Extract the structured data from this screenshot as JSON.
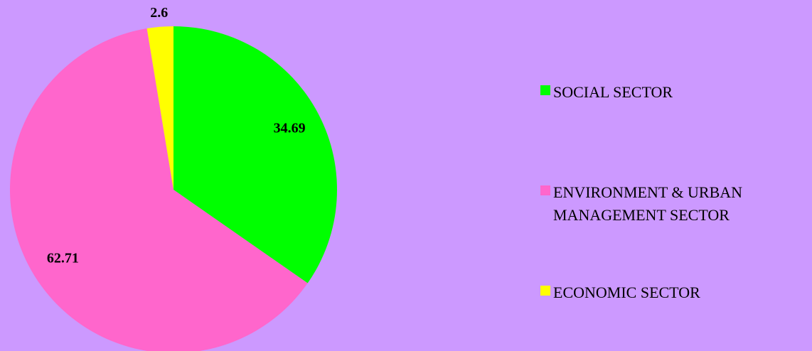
{
  "chart_data": {
    "type": "pie",
    "categories": [
      "SOCIAL SECTOR",
      "ENVIRONMENT & URBAN MANAGEMENT SECTOR",
      "ECONOMIC SECTOR"
    ],
    "values": [
      34.69,
      62.71,
      2.6
    ],
    "colors": [
      "#00ff00",
      "#ff66cc",
      "#ffff00"
    ],
    "legend": "right"
  }
}
